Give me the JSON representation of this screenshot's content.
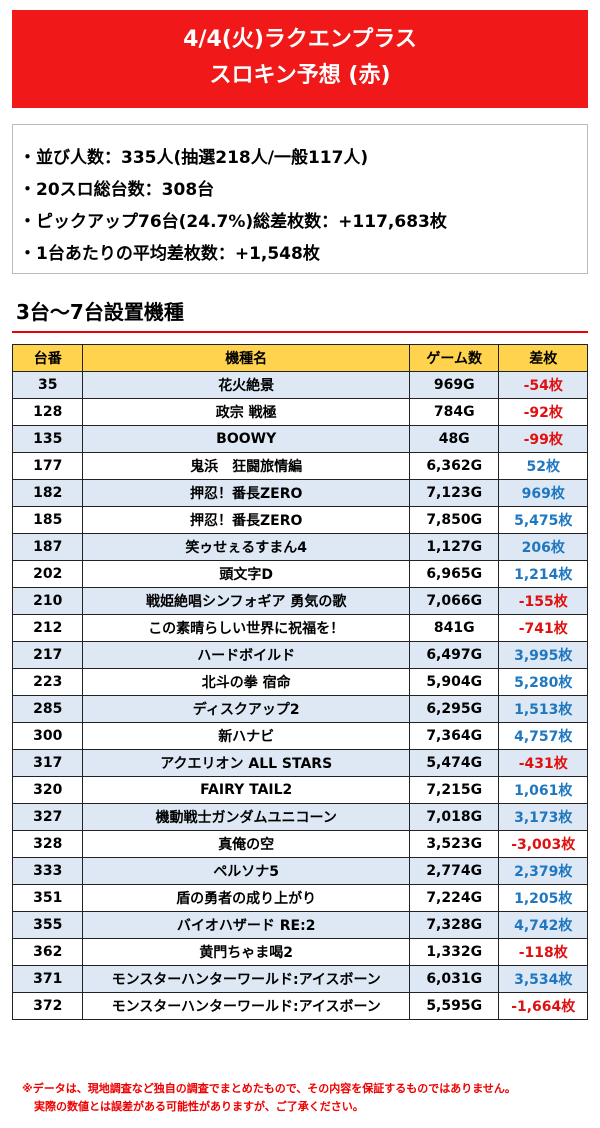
{
  "header": {
    "title_line1": "4/4(火)ラクエンプラス",
    "title_line2": "スロキン予想 (赤)"
  },
  "summary": [
    "・並び人数：335人(抽選218人/一般117人)",
    "・20スロ総台数：308台",
    "・ピックアップ76台(24.7%)総差枚数：+117,683枚",
    "・1台あたりの平均差枚数：+1,548枚"
  ],
  "section_title": "3台～7台設置機種",
  "table": {
    "columns": [
      "台番",
      "機種名",
      "ゲーム数",
      "差枚"
    ],
    "rows": [
      [
        "35",
        "花火絶景",
        "969G",
        "-54枚"
      ],
      [
        "128",
        "政宗 戦極",
        "784G",
        "-92枚"
      ],
      [
        "135",
        "BOOWY",
        "48G",
        "-99枚"
      ],
      [
        "177",
        "鬼浜　狂闘旅情編",
        "6,362G",
        "52枚"
      ],
      [
        "182",
        "押忍！番長ZERO",
        "7,123G",
        "969枚"
      ],
      [
        "185",
        "押忍！番長ZERO",
        "7,850G",
        "5,475枚"
      ],
      [
        "187",
        "笑ゥせぇるすまん4",
        "1,127G",
        "206枚"
      ],
      [
        "202",
        "頭文字D",
        "6,965G",
        "1,214枚"
      ],
      [
        "210",
        "戦姫絶唱シンフォギア 勇気の歌",
        "7,066G",
        "-155枚"
      ],
      [
        "212",
        "この素晴らしい世界に祝福を！",
        "841G",
        "-741枚"
      ],
      [
        "217",
        "ハードボイルド",
        "6,497G",
        "3,995枚"
      ],
      [
        "223",
        "北斗の拳 宿命",
        "5,904G",
        "5,280枚"
      ],
      [
        "285",
        "ディスクアップ2",
        "6,295G",
        "1,513枚"
      ],
      [
        "300",
        "新ハナビ",
        "7,364G",
        "4,757枚"
      ],
      [
        "317",
        "アクエリオン ALL STARS",
        "5,474G",
        "-431枚"
      ],
      [
        "320",
        "FAIRY TAIL2",
        "7,215G",
        "1,061枚"
      ],
      [
        "327",
        "機動戦士ガンダムユニコーン",
        "7,018G",
        "3,173枚"
      ],
      [
        "328",
        "真俺の空",
        "3,523G",
        "-3,003枚"
      ],
      [
        "333",
        "ペルソナ5",
        "2,774G",
        "2,379枚"
      ],
      [
        "351",
        "盾の勇者の成り上がり",
        "7,224G",
        "1,205枚"
      ],
      [
        "355",
        "バイオハザード RE:2",
        "7,328G",
        "4,742枚"
      ],
      [
        "362",
        "黄門ちゃま喝2",
        "1,332G",
        "-118枚"
      ],
      [
        "371",
        "モンスターハンターワールド:アイスボーン",
        "6,031G",
        "3,534枚"
      ],
      [
        "372",
        "モンスターハンターワールド:アイスボーン",
        "5,595G",
        "-1,664枚"
      ]
    ]
  },
  "footnote": {
    "line1": "※データは、現地調査など独自の調査でまとめたもので、その内容を保証するものではありません。",
    "line2": "実際の数値とは誤差がある可能性がありますが、ご了承ください。"
  }
}
